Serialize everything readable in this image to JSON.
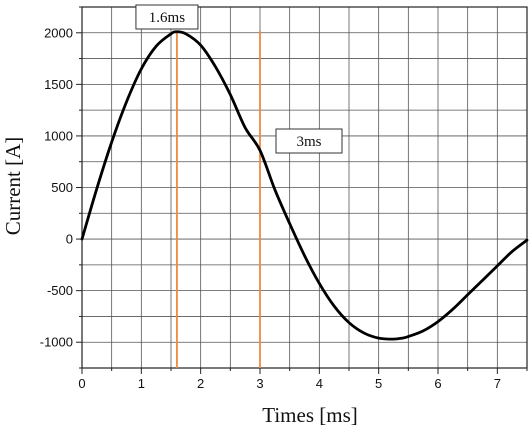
{
  "chart_data": {
    "type": "line",
    "title": "",
    "xlabel": "Times [ms]",
    "ylabel": "Current [A]",
    "xlim": [
      0,
      7.5
    ],
    "ylim": [
      -1250,
      2250
    ],
    "grid": true,
    "legend": "none",
    "x_ticks": [
      0,
      1,
      2,
      3,
      4,
      5,
      6,
      7
    ],
    "y_ticks": [
      -1000,
      -500,
      0,
      500,
      1000,
      1500,
      2000
    ],
    "series": [
      {
        "color": "#000000",
        "x": [
          0,
          0.25,
          0.5,
          0.75,
          1.0,
          1.25,
          1.5,
          1.6,
          1.75,
          2.0,
          2.25,
          2.5,
          2.75,
          3.0,
          3.25,
          3.5,
          3.75,
          4.0,
          4.25,
          4.5,
          4.75,
          5.0,
          5.25,
          5.4,
          5.5,
          5.75,
          6.0,
          6.25,
          6.5,
          6.75,
          7.0,
          7.25,
          7.5
        ],
        "y": [
          0,
          490,
          940,
          1330,
          1650,
          1870,
          1990,
          2010,
          1990,
          1880,
          1670,
          1400,
          1080,
          860,
          480,
          150,
          -160,
          -430,
          -650,
          -810,
          -910,
          -960,
          -970,
          -960,
          -945,
          -890,
          -800,
          -680,
          -540,
          -400,
          -260,
          -120,
          -10
        ]
      }
    ],
    "markers": [
      {
        "x": 1.6,
        "label": "1.6ms",
        "color": "#ED8A3F"
      },
      {
        "x": 3.0,
        "label": "3ms",
        "color": "#ED8A3F"
      }
    ]
  }
}
